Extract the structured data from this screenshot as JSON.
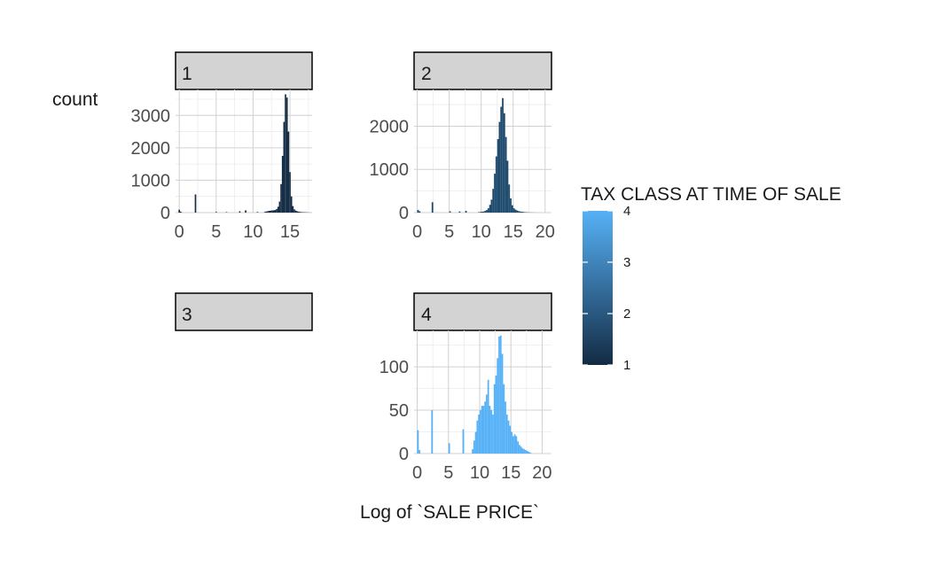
{
  "chart_data": {
    "type": "bar",
    "ylabel": "count",
    "xlabel": "Log of `SALE PRICE`",
    "legend": {
      "title": "TAX CLASS AT TIME OF SALE",
      "placement": "right",
      "min": 1,
      "max": 4,
      "ticks": [
        "4",
        "3",
        "2",
        "1"
      ],
      "color_low": "#132B43",
      "color_high": "#56B1F7"
    },
    "panels": [
      {
        "label": "1",
        "tax_class": 1,
        "fill": "#132B43",
        "xlim": [
          -0.5,
          18.0
        ],
        "ylim": [
          0,
          3800
        ],
        "x_ticks": [
          0,
          5,
          10,
          15
        ],
        "x_tick_labels": [
          "0",
          "5",
          "10",
          "15"
        ],
        "y_ticks": [
          0,
          1000,
          2000,
          3000
        ],
        "y_tick_labels": [
          "0",
          "1000",
          "2000",
          "3000"
        ],
        "bin_start": -0.5,
        "bin_width": 0.2,
        "counts": [
          0,
          0,
          90,
          30,
          0,
          0,
          0,
          0,
          0,
          0,
          0,
          0,
          0,
          560,
          0,
          0,
          0,
          0,
          0,
          0,
          0,
          0,
          0,
          0,
          0,
          0,
          0,
          20,
          0,
          0,
          0,
          0,
          0,
          0,
          15,
          0,
          0,
          0,
          0,
          0,
          0,
          0,
          0,
          40,
          0,
          0,
          0,
          70,
          0,
          0,
          0,
          0,
          0,
          0,
          0,
          20,
          0,
          0,
          0,
          0,
          20,
          35,
          45,
          55,
          60,
          70,
          70,
          80,
          110,
          180,
          340,
          880,
          1750,
          2800,
          3650,
          3550,
          2500,
          1250,
          500,
          200,
          100,
          60,
          40,
          30,
          20,
          15,
          12,
          10,
          8,
          5,
          3,
          2,
          0
        ]
      },
      {
        "label": "2",
        "tax_class": 2,
        "fill": "#1E4A6D",
        "xlim": [
          -0.5,
          21.0
        ],
        "ylim": [
          0,
          2850
        ],
        "x_ticks": [
          0,
          5,
          10,
          15,
          20
        ],
        "x_tick_labels": [
          "0",
          "5",
          "10",
          "15",
          "20"
        ],
        "y_ticks": [
          0,
          1000,
          2000
        ],
        "y_tick_labels": [
          "0",
          "1000",
          "2000"
        ],
        "bin_start": -0.5,
        "bin_width": 0.25,
        "counts": [
          0,
          0,
          60,
          30,
          0,
          0,
          0,
          0,
          0,
          0,
          0,
          240,
          0,
          0,
          0,
          0,
          0,
          0,
          0,
          0,
          0,
          0,
          30,
          0,
          0,
          0,
          0,
          0,
          25,
          0,
          0,
          0,
          40,
          0,
          0,
          0,
          0,
          0,
          0,
          0,
          10,
          15,
          20,
          25,
          40,
          60,
          100,
          180,
          300,
          550,
          900,
          1300,
          1700,
          2100,
          2450,
          2650,
          2300,
          1750,
          1200,
          650,
          330,
          170,
          100,
          70,
          50,
          35,
          25,
          20,
          15,
          10,
          8,
          5,
          4,
          3,
          2,
          1,
          1,
          0,
          0,
          0,
          0,
          0,
          0,
          0,
          0,
          0
        ]
      },
      {
        "label": "3",
        "tax_class": 3,
        "counts": []
      },
      {
        "label": "4",
        "tax_class": 4,
        "fill": "#56B1F7",
        "xlim": [
          -0.5,
          21.5
        ],
        "ylim": [
          0,
          142
        ],
        "x_ticks": [
          0,
          5,
          10,
          15,
          20
        ],
        "x_tick_labels": [
          "0",
          "5",
          "10",
          "15",
          "20"
        ],
        "y_ticks": [
          0,
          50,
          100
        ],
        "y_tick_labels": [
          "0",
          "50",
          "100"
        ],
        "bin_start": -0.5,
        "bin_width": 0.25,
        "counts": [
          0,
          0,
          27,
          4,
          0,
          0,
          0,
          0,
          0,
          0,
          0,
          50,
          0,
          0,
          0,
          0,
          0,
          0,
          0,
          0,
          0,
          0,
          12,
          0,
          0,
          0,
          0,
          0,
          0,
          0,
          0,
          28,
          0,
          0,
          0,
          0,
          0,
          5,
          15,
          25,
          38,
          45,
          50,
          55,
          55,
          60,
          68,
          85,
          55,
          50,
          45,
          80,
          90,
          110,
          135,
          136,
          115,
          80,
          60,
          45,
          38,
          32,
          25,
          20,
          22,
          20,
          14,
          10,
          8,
          6,
          5,
          4,
          3,
          2,
          1,
          0
        ]
      }
    ]
  }
}
